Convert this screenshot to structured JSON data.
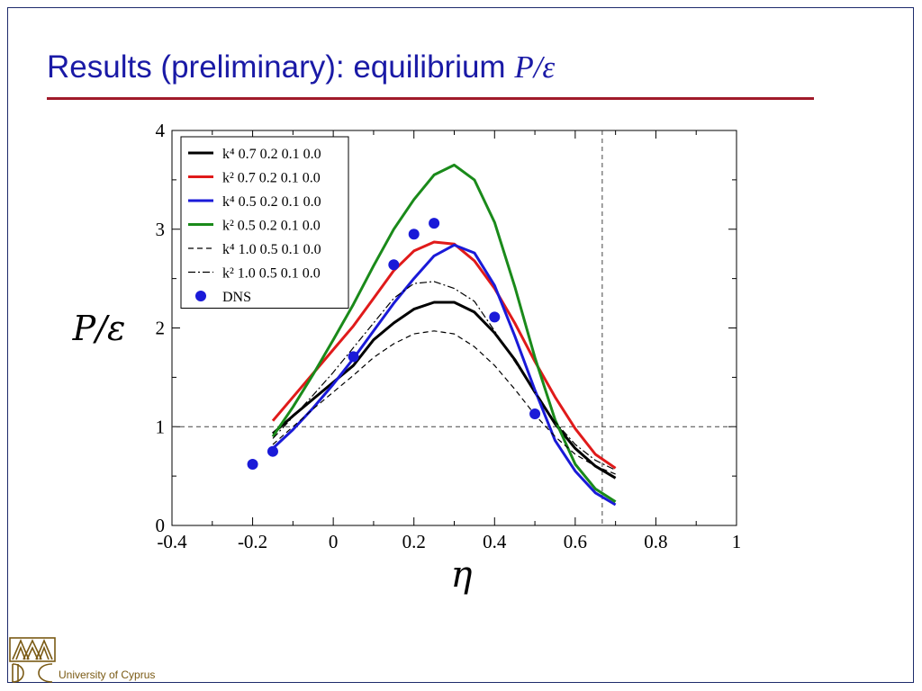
{
  "slide": {
    "title_text": "Results (preliminary):  equilibrium ",
    "title_symbol": "P/ε",
    "footer": "University of Cyprus",
    "logo_icon": "university-of-cyprus-logo"
  },
  "chart_data": {
    "type": "line",
    "xlabel": "η",
    "ylabel": "P/ε",
    "xlim": [
      -0.4,
      1.0
    ],
    "ylim": [
      0,
      4
    ],
    "xticks": [
      "-0.4",
      "-0.2",
      "0",
      "0.2",
      "0.4",
      "0.6",
      "0.8",
      "1"
    ],
    "yticks": [
      "0",
      "1",
      "2",
      "3",
      "4"
    ],
    "reference_lines": {
      "y": 1,
      "x": 0.667
    },
    "legend_position": "top-left",
    "series": [
      {
        "name": "k⁴ 0.7 0.2 0.1 0.0",
        "color": "#000000",
        "style": "solid",
        "x": [
          -0.15,
          -0.1,
          -0.05,
          0,
          0.05,
          0.1,
          0.15,
          0.2,
          0.25,
          0.3,
          0.35,
          0.4,
          0.45,
          0.5,
          0.55,
          0.6,
          0.65,
          0.7
        ],
        "y": [
          0.93,
          1.11,
          1.28,
          1.45,
          1.62,
          1.88,
          2.05,
          2.19,
          2.26,
          2.26,
          2.16,
          1.95,
          1.68,
          1.35,
          1.03,
          0.78,
          0.6,
          0.48
        ]
      },
      {
        "name": "k² 0.7 0.2 0.1 0.0",
        "color": "#e01a1a",
        "style": "solid",
        "x": [
          -0.15,
          -0.1,
          -0.05,
          0,
          0.05,
          0.1,
          0.15,
          0.2,
          0.25,
          0.3,
          0.35,
          0.4,
          0.45,
          0.5,
          0.55,
          0.6,
          0.65,
          0.7
        ],
        "y": [
          1.06,
          1.3,
          1.54,
          1.78,
          2.02,
          2.3,
          2.58,
          2.78,
          2.87,
          2.85,
          2.68,
          2.4,
          2.05,
          1.66,
          1.3,
          0.98,
          0.72,
          0.58
        ]
      },
      {
        "name": "k⁴ 0.5 0.2 0.1 0.0",
        "color": "#1a1ad8",
        "style": "solid",
        "x": [
          -0.15,
          -0.1,
          -0.05,
          0,
          0.05,
          0.1,
          0.15,
          0.2,
          0.25,
          0.3,
          0.35,
          0.4,
          0.45,
          0.5,
          0.55,
          0.6,
          0.65,
          0.7
        ],
        "y": [
          0.78,
          0.97,
          1.19,
          1.43,
          1.69,
          1.97,
          2.25,
          2.5,
          2.73,
          2.84,
          2.76,
          2.43,
          1.92,
          1.37,
          0.86,
          0.55,
          0.33,
          0.21
        ]
      },
      {
        "name": "k² 0.5 0.2 0.1 0.0",
        "color": "#1a8a1a",
        "style": "solid",
        "x": [
          -0.15,
          -0.1,
          -0.05,
          0,
          0.05,
          0.1,
          0.15,
          0.2,
          0.25,
          0.3,
          0.35,
          0.4,
          0.45,
          0.5,
          0.55,
          0.6,
          0.65,
          0.7
        ],
        "y": [
          0.9,
          1.2,
          1.53,
          1.88,
          2.24,
          2.63,
          3.0,
          3.3,
          3.55,
          3.65,
          3.5,
          3.07,
          2.42,
          1.7,
          1.07,
          0.62,
          0.37,
          0.24
        ]
      },
      {
        "name": "k⁴ 1.0 0.5 0.1 0.0",
        "color": "#000000",
        "style": "dashed",
        "x": [
          -0.15,
          -0.1,
          -0.05,
          0,
          0.05,
          0.1,
          0.15,
          0.2,
          0.25,
          0.3,
          0.35,
          0.4,
          0.45,
          0.5,
          0.55,
          0.6,
          0.65,
          0.7
        ],
        "y": [
          0.82,
          1.0,
          1.18,
          1.35,
          1.52,
          1.7,
          1.84,
          1.94,
          1.97,
          1.94,
          1.81,
          1.62,
          1.38,
          1.12,
          0.9,
          0.72,
          0.6,
          0.52
        ]
      },
      {
        "name": "k² 1.0 0.5 0.1 0.0",
        "color": "#000000",
        "style": "dashdot",
        "x": [
          -0.15,
          -0.1,
          -0.05,
          0,
          0.05,
          0.1,
          0.15,
          0.2,
          0.25,
          0.3,
          0.35,
          0.4,
          0.45,
          0.5,
          0.55,
          0.6,
          0.65,
          0.7
        ],
        "y": [
          0.88,
          1.1,
          1.32,
          1.55,
          1.8,
          2.05,
          2.3,
          2.45,
          2.47,
          2.4,
          2.27,
          1.97,
          1.66,
          1.35,
          1.05,
          0.82,
          0.66,
          0.56
        ]
      },
      {
        "name": "DNS",
        "color": "#1a1ad8",
        "style": "markers",
        "x": [
          -0.2,
          -0.15,
          0.05,
          0.15,
          0.2,
          0.25,
          0.4,
          0.5
        ],
        "y": [
          0.62,
          0.75,
          1.71,
          2.64,
          2.95,
          3.06,
          2.11,
          1.13
        ]
      }
    ]
  }
}
